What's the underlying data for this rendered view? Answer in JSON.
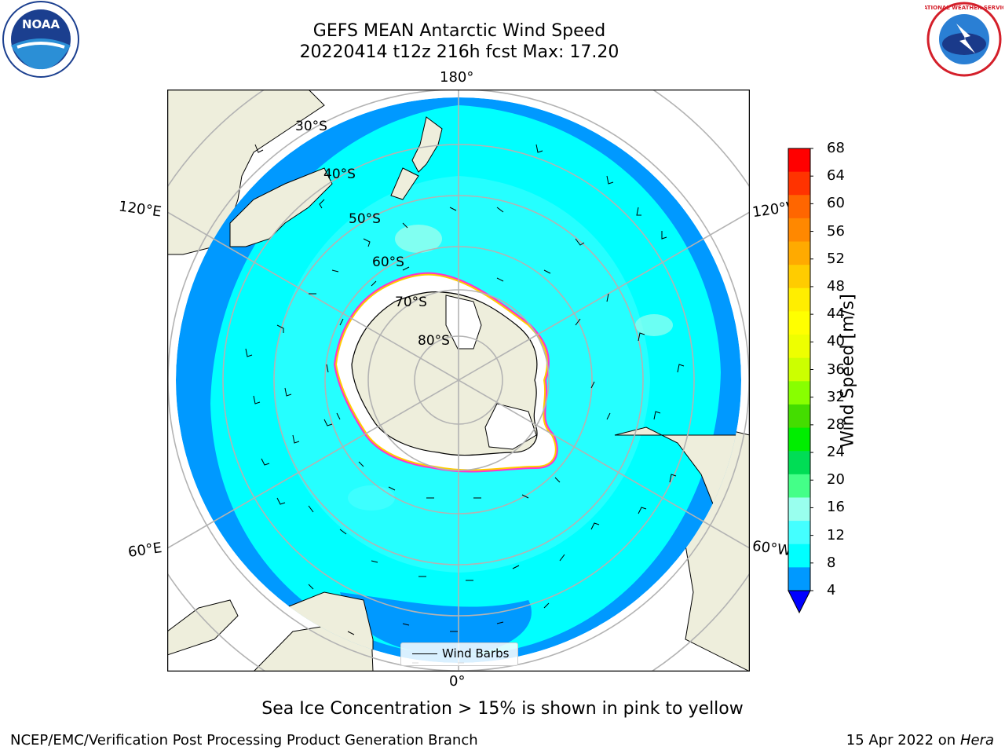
{
  "title_line1": "GEFS MEAN Antarctic Wind Speed",
  "title_line2": "20220414 t12z 216h fcst   Max: 17.20",
  "lon_labels": {
    "top": "180°",
    "bottom": "0°",
    "upper_left": "120°E",
    "upper_right": "120°W",
    "lower_left": "60°E",
    "lower_right": "60°W"
  },
  "lat_labels": [
    "30°S",
    "40°S",
    "50°S",
    "60°S",
    "70°S",
    "80°S"
  ],
  "legend_label": "Wind Barbs",
  "colorbar": {
    "label": "Wind Speed [m/s]",
    "ticks": [
      "68",
      "64",
      "60",
      "56",
      "52",
      "48",
      "44",
      "40",
      "36",
      "32",
      "28",
      "24",
      "20",
      "16",
      "12",
      "8",
      "4"
    ],
    "colors_top_to_bottom": [
      "#ff0000",
      "#ff3300",
      "#ff6600",
      "#ff8800",
      "#ffaa00",
      "#ffcc00",
      "#ffee00",
      "#ffff00",
      "#eeff00",
      "#ccff00",
      "#88ff00",
      "#44dd00",
      "#00ee00",
      "#00dd55",
      "#44ff88",
      "#99ffee",
      "#44ffff",
      "#00ffff",
      "#0099ff"
    ],
    "extend_color": "#0000ff"
  },
  "footer_note": "Sea Ice Concentration > 15% is shown in pink to yellow",
  "footer_left": "NCEP/EMC/Verification Post Processing Product Generation Branch",
  "footer_date": "15 Apr 2022 on ",
  "footer_machine": "Hera",
  "logos": {
    "left": "NOAA",
    "right": "NATIONAL WEATHER SERVICE"
  }
}
